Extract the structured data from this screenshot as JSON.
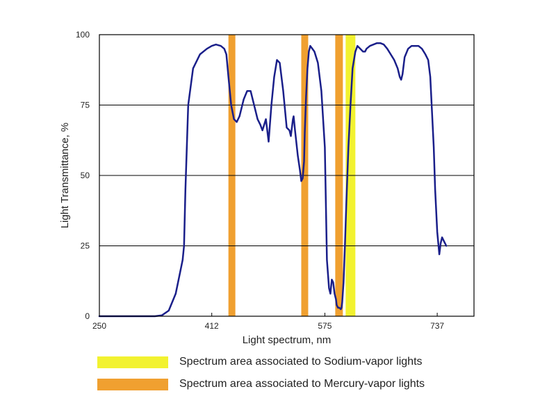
{
  "chart_data": {
    "type": "line",
    "xlabel": "Light spectrum, nm",
    "ylabel": "Light Transmittance, %",
    "xlim": [
      250,
      790
    ],
    "ylim": [
      0,
      100
    ],
    "x_ticks": [
      250,
      412,
      575,
      737
    ],
    "y_ticks": [
      0,
      25,
      50,
      75,
      100
    ],
    "grid": "horizontal",
    "colors": {
      "line": "#1a1f8a",
      "sodium": "#f2f230",
      "mercury": "#f0a030",
      "grid": "#000000"
    },
    "bands": [
      {
        "category": "mercury",
        "x0": 436,
        "x1": 446
      },
      {
        "category": "mercury",
        "x0": 541,
        "x1": 551
      },
      {
        "category": "mercury",
        "x0": 590,
        "x1": 601
      },
      {
        "category": "sodium",
        "x0": 605,
        "x1": 619
      }
    ],
    "series": [
      {
        "x": [
          250,
          300,
          330,
          340,
          350,
          360,
          365,
          370,
          372,
          374,
          378,
          385,
          395,
          405,
          412,
          418,
          425,
          430,
          433,
          436,
          440,
          444,
          448,
          452,
          455,
          458,
          463,
          468,
          472,
          475,
          478,
          482,
          485,
          490,
          494,
          498,
          502,
          506,
          510,
          515,
          520,
          524,
          526,
          529,
          530,
          532,
          536,
          539,
          541,
          543,
          545,
          546,
          548,
          550,
          552,
          554,
          557,
          560,
          565,
          570,
          575,
          578,
          581,
          583,
          585,
          587,
          589,
          591,
          592,
          594,
          596,
          598,
          599,
          600,
          602,
          604,
          606,
          609,
          612,
          615,
          619,
          622,
          626,
          630,
          633,
          635,
          640,
          645,
          650,
          655,
          660,
          665,
          670,
          675,
          680,
          683,
          685,
          687,
          690,
          695,
          700,
          705,
          710,
          715,
          720,
          724,
          727,
          729,
          732,
          734,
          737,
          740,
          742,
          744,
          746,
          748,
          750
        ],
        "y": [
          0,
          0,
          0,
          0.3,
          2,
          8,
          14,
          20,
          25,
          45,
          75,
          88,
          93,
          95,
          96,
          96.5,
          96,
          95,
          93,
          85,
          75,
          70,
          69,
          71,
          74,
          77,
          80,
          80,
          76,
          73,
          70,
          68,
          66,
          70,
          62,
          75,
          85,
          91,
          90,
          80,
          67,
          66,
          64,
          70,
          71,
          66,
          57,
          52,
          48,
          49,
          55,
          65,
          78,
          88,
          94,
          96,
          95,
          94,
          90,
          80,
          60,
          20,
          10,
          8,
          13,
          12,
          8,
          6,
          4,
          3,
          3,
          2.5,
          3,
          5,
          12,
          25,
          40,
          60,
          75,
          88,
          94,
          96,
          95,
          94,
          94,
          95,
          96,
          96.5,
          97,
          97,
          96.5,
          95,
          93,
          91,
          88,
          85,
          84,
          86,
          92,
          95,
          96,
          96,
          96,
          95,
          93,
          91,
          85,
          75,
          60,
          45,
          30,
          22,
          26,
          28,
          27,
          26,
          25
        ]
      }
    ],
    "legend": [
      {
        "category": "sodium",
        "label": "Spectrum area associated to Sodium-vapor lights"
      },
      {
        "category": "mercury",
        "label": "Spectrum area associated to Mercury-vapor lights"
      }
    ]
  }
}
